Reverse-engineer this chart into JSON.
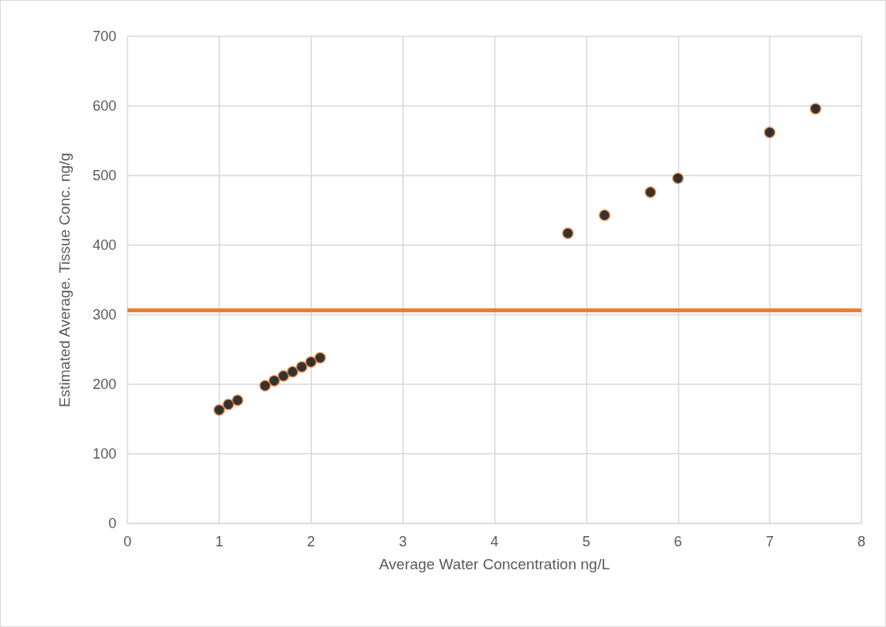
{
  "chart_data": {
    "type": "scatter",
    "xlabel": "Average Water Concentration ng/L",
    "ylabel": "Estimated Average. Tissue Conc. ng/g",
    "x": [
      1,
      1.1,
      1.2,
      1.5,
      1.6,
      1.7,
      1.8,
      1.9,
      2.0,
      2.1,
      4.8,
      5.2,
      5.7,
      6.0,
      7.0,
      7.5
    ],
    "series": [
      {
        "color": "#000000",
        "values": [
          163,
          171,
          177,
          198,
          205,
          212,
          218,
          225,
          232,
          238,
          417,
          443,
          476,
          496,
          562,
          596
        ]
      }
    ],
    "xlim": [
      0,
      8
    ],
    "xticks": [
      0,
      1,
      2,
      3,
      4,
      5,
      6,
      7,
      8
    ],
    "ylim": [
      0,
      700
    ],
    "yticks": [
      0,
      100,
      200,
      300,
      400,
      500,
      600,
      700
    ],
    "ref_lines": [
      {
        "axis": "y",
        "value": 306,
        "color": "#ed7d31"
      }
    ],
    "grid": true,
    "marker": "circle"
  }
}
